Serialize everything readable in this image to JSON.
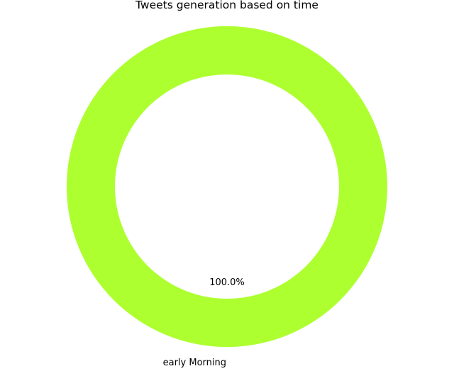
{
  "chart_data": {
    "type": "pie",
    "style": "donut",
    "title": "Tweets generation based on time",
    "slices": [
      {
        "label": "early Morning",
        "value": 100.0,
        "percent_label": "100.0%",
        "color": "#adff2f"
      }
    ],
    "legend": "none"
  }
}
